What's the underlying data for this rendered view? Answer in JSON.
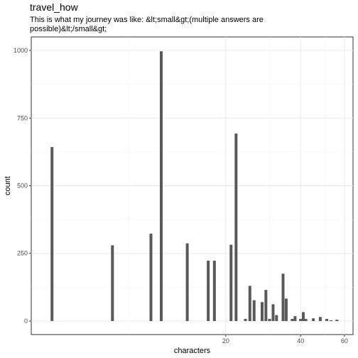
{
  "chart_data": {
    "type": "bar",
    "title": "travel_how",
    "subtitle": "This is what my journey was like: &lt;small&gt;(multiple answers are possible)&lt;/small&gt;",
    "xlabel": "characters",
    "ylabel": "count",
    "x_scale": "log10",
    "xlim": [
      3.3,
      65
    ],
    "ylim": [
      -50,
      1050
    ],
    "x_ticks": [
      20,
      40,
      60
    ],
    "y_ticks": [
      0,
      250,
      500,
      750,
      1000
    ],
    "grid": true,
    "bars": [
      {
        "x": 4,
        "value": 643
      },
      {
        "x": 7,
        "value": 280
      },
      {
        "x": 10,
        "value": 323
      },
      {
        "x": 11,
        "value": 997
      },
      {
        "x": 14,
        "value": 287
      },
      {
        "x": 17,
        "value": 223
      },
      {
        "x": 18,
        "value": 223
      },
      {
        "x": 21,
        "value": 282
      },
      {
        "x": 22,
        "value": 693
      },
      {
        "x": 24,
        "value": 8
      },
      {
        "x": 25,
        "value": 130
      },
      {
        "x": 26,
        "value": 77
      },
      {
        "x": 28,
        "value": 70
      },
      {
        "x": 29,
        "value": 115
      },
      {
        "x": 30,
        "value": 8
      },
      {
        "x": 31,
        "value": 62
      },
      {
        "x": 32,
        "value": 22
      },
      {
        "x": 34,
        "value": 175
      },
      {
        "x": 35,
        "value": 83
      },
      {
        "x": 37,
        "value": 8
      },
      {
        "x": 38,
        "value": 18
      },
      {
        "x": 40,
        "value": 8
      },
      {
        "x": 41,
        "value": 33
      },
      {
        "x": 42,
        "value": 8
      },
      {
        "x": 45,
        "value": 10
      },
      {
        "x": 48,
        "value": 15
      },
      {
        "x": 51,
        "value": 8
      },
      {
        "x": 53,
        "value": 3
      },
      {
        "x": 56,
        "value": 5
      }
    ]
  }
}
